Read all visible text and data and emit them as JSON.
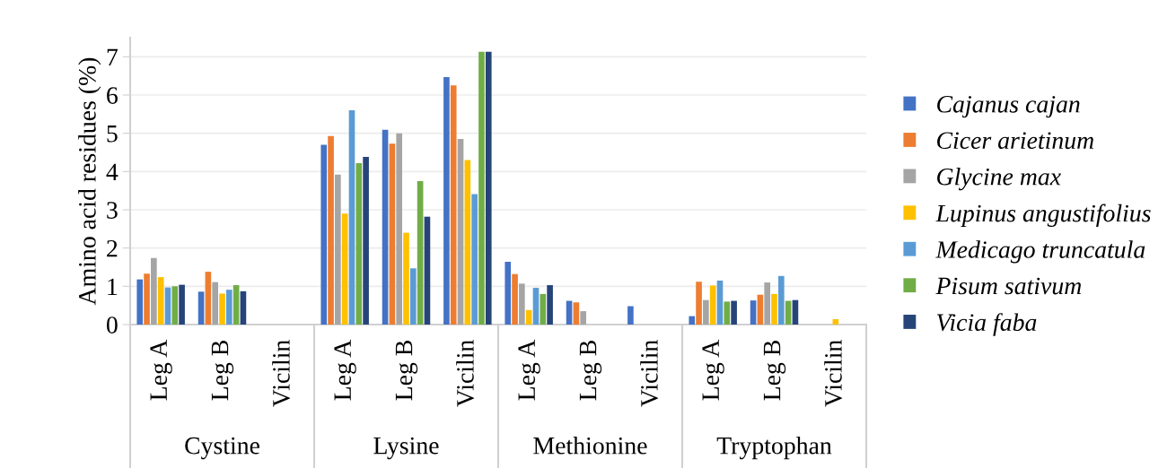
{
  "chart_data": {
    "type": "bar",
    "ylabel": "Amino acid residues (%)",
    "categories": [
      "Leg A",
      "Leg B",
      "Vicilin",
      "Leg A",
      "Leg B",
      "Vicilin",
      "Leg A",
      "Leg B",
      "Vicilin",
      "Leg A",
      "Leg B",
      "Vicilin"
    ],
    "annotations": [
      "Cystine",
      "Lysine",
      "Methionine",
      "Tryptophan"
    ],
    "series": [
      {
        "name": "Cajanus cajan",
        "color": "#4472c4",
        "values": [
          1.18,
          0.86,
          null,
          4.7,
          5.09,
          6.47,
          1.64,
          0.62,
          0.48,
          0.22,
          0.63,
          null
        ]
      },
      {
        "name": "Cicer arietinum",
        "color": "#ed7d31",
        "values": [
          1.33,
          1.38,
          null,
          4.93,
          4.73,
          6.25,
          1.32,
          0.58,
          null,
          1.12,
          0.78,
          null
        ]
      },
      {
        "name": "Glycine max",
        "color": "#a5a5a5",
        "values": [
          1.74,
          1.11,
          null,
          3.92,
          5.0,
          4.85,
          1.07,
          0.35,
          null,
          0.64,
          1.1,
          null
        ]
      },
      {
        "name": "Lupinus angustifolius",
        "color": "#ffc000",
        "values": [
          1.24,
          0.81,
          null,
          2.9,
          2.4,
          4.3,
          0.38,
          null,
          null,
          1.02,
          0.8,
          0.14
        ]
      },
      {
        "name": "Medicago truncatula",
        "color": "#5b9bd5",
        "values": [
          0.97,
          0.91,
          null,
          5.6,
          1.47,
          3.41,
          0.96,
          null,
          null,
          1.15,
          1.27,
          null
        ]
      },
      {
        "name": "Pisum sativum",
        "color": "#70ad47",
        "values": [
          1.0,
          1.03,
          null,
          4.22,
          3.75,
          7.13,
          0.8,
          null,
          null,
          0.6,
          0.62,
          null
        ]
      },
      {
        "name": "Vicia faba",
        "color": "#264478",
        "values": [
          1.04,
          0.87,
          null,
          4.38,
          2.82,
          7.13,
          1.03,
          null,
          null,
          0.62,
          0.64,
          null
        ]
      }
    ],
    "ylim": [
      0,
      7.5
    ],
    "yticks": [
      0,
      1,
      2,
      3,
      4,
      5,
      6,
      7
    ],
    "grid": "y",
    "legend": "right"
  }
}
